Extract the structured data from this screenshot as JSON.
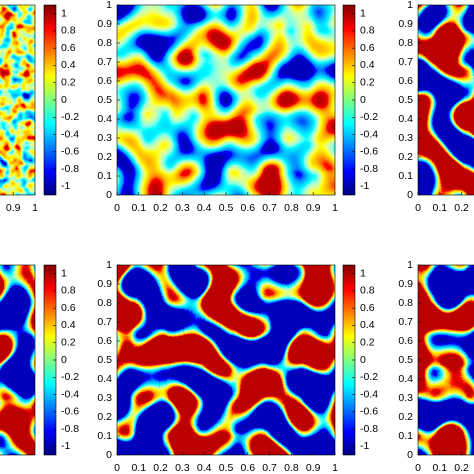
{
  "chart_data": [
    {
      "type": "heatmap",
      "xlim": [
        0,
        1
      ],
      "ylim": [
        0,
        1
      ],
      "xticks": [
        0.9,
        1
      ],
      "clim": [
        -1.1,
        1.1
      ],
      "cticks": [
        1,
        0.8,
        0.6,
        0.4,
        0.2,
        0,
        -0.2,
        -0.4,
        -0.6,
        -0.8,
        -1
      ],
      "pattern": "noisy"
    },
    {
      "type": "heatmap",
      "xlim": [
        0,
        1
      ],
      "ylim": [
        0,
        1
      ],
      "xticks": [
        0,
        0.1,
        0.2,
        0.3,
        0.4,
        0.5,
        0.6,
        0.7,
        0.8,
        0.9,
        1
      ],
      "yticks": [
        0,
        0.1,
        0.2,
        0.3,
        0.4,
        0.5,
        0.6,
        0.7,
        0.8,
        0.9,
        1
      ],
      "clim": [
        -1.1,
        1.1
      ],
      "cticks": [
        1,
        0.8,
        0.6,
        0.4,
        0.2,
        0,
        -0.2,
        -0.4,
        -0.6,
        -0.8,
        -1
      ],
      "pattern": "soft"
    },
    {
      "type": "heatmap",
      "xlim": [
        0,
        1
      ],
      "ylim": [
        0,
        1
      ],
      "xticks": [
        0,
        0.1,
        0.2
      ],
      "yticks": [
        0,
        0.1,
        0.2,
        0.3,
        0.4,
        0.5,
        0.6,
        0.7,
        0.8,
        0.9,
        1
      ],
      "pattern": "sharp"
    },
    {
      "type": "heatmap",
      "xlim": [
        0,
        1
      ],
      "ylim": [
        0,
        1
      ],
      "clim": [
        -1.1,
        1.1
      ],
      "cticks": [
        1,
        0.8,
        0.6,
        0.4,
        0.2,
        0,
        -0.2,
        -0.4,
        -0.6,
        -0.8,
        -1
      ],
      "pattern": "sharp"
    },
    {
      "type": "heatmap",
      "xlim": [
        0,
        1
      ],
      "ylim": [
        0,
        1
      ],
      "xticks": [
        0,
        0.1,
        0.2,
        0.3,
        0.4,
        0.5,
        0.6,
        0.7,
        0.8,
        0.9,
        1
      ],
      "yticks": [
        0,
        0.1,
        0.2,
        0.3,
        0.4,
        0.5,
        0.6,
        0.7,
        0.8,
        0.9,
        1
      ],
      "clim": [
        -1.1,
        1.1
      ],
      "cticks": [
        1,
        0.8,
        0.6,
        0.4,
        0.2,
        0,
        -0.2,
        -0.4,
        -0.6,
        -0.8,
        -1
      ],
      "pattern": "sharp"
    },
    {
      "type": "heatmap",
      "xlim": [
        0,
        1
      ],
      "ylim": [
        0,
        1
      ],
      "xticks": [
        0,
        0.1,
        0.2
      ],
      "yticks": [
        0,
        0.1,
        0.2,
        0.3,
        0.4,
        0.5,
        0.6,
        0.7,
        0.8,
        0.9,
        1
      ],
      "pattern": "sharp"
    }
  ]
}
